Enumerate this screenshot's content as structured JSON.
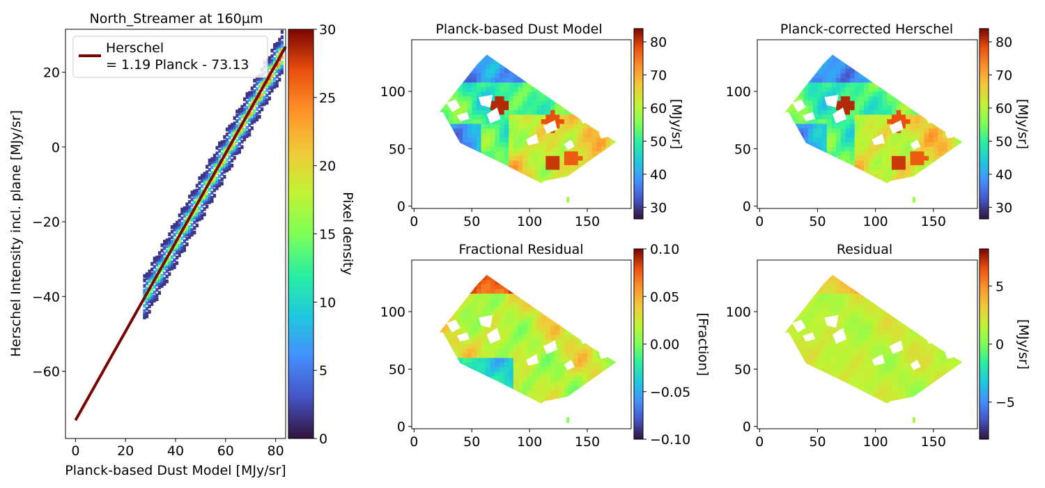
{
  "chart_data": [
    {
      "id": "scatter",
      "type": "heatmap",
      "title": "North_Streamer at 160µm",
      "xlabel": "Planck-based Dust Model [MJy/sr]",
      "ylabel": "Herschel Intensity incl. plane [MJy/sr]",
      "xlim": [
        -4,
        84
      ],
      "ylim": [
        -78,
        31.5
      ],
      "xticks": [
        0,
        20,
        40,
        60,
        80
      ],
      "yticks": [
        -60,
        -40,
        -20,
        0,
        20
      ],
      "fit": {
        "slope": 1.19,
        "intercept": -73.13,
        "x_start": 0,
        "x_end": 84,
        "color": "#7a0403"
      },
      "density_band": {
        "x_start": 27,
        "x_end": 84,
        "half_width": 3.2
      },
      "legend": {
        "label_line1": "Herschel",
        "label_line2": "= 1.19 Planck - 73.13",
        "placement": "upper-left"
      },
      "colorbar": {
        "label": "Pixel density",
        "min": 0,
        "max": 30,
        "ticks": [
          0,
          5,
          10,
          15,
          20,
          25,
          30
        ],
        "cmap": "turbo"
      }
    },
    {
      "id": "dust-model",
      "type": "heatmap",
      "title": "Planck-based Dust Model",
      "xlim": [
        -2,
        188
      ],
      "ylim": [
        -2,
        145
      ],
      "xticks": [
        0,
        50,
        100,
        150
      ],
      "yticks": [
        0,
        50,
        100
      ],
      "colorbar": {
        "label": "[MJy/sr]",
        "min": 26.5,
        "max": 84,
        "ticks": [
          30,
          40,
          50,
          60,
          70,
          80
        ],
        "cmap": "turbo"
      }
    },
    {
      "id": "herschel-corrected",
      "type": "heatmap",
      "title": "Planck-corrected Herschel",
      "xlim": [
        -2,
        188
      ],
      "ylim": [
        -2,
        145
      ],
      "xticks": [
        0,
        50,
        100,
        150
      ],
      "yticks": [
        0,
        50,
        100
      ],
      "colorbar": {
        "label": "[MJy/sr]",
        "min": 26.5,
        "max": 84,
        "ticks": [
          30,
          40,
          50,
          60,
          70,
          80
        ],
        "cmap": "turbo"
      }
    },
    {
      "id": "fractional-residual",
      "type": "heatmap",
      "title": "Fractional Residual",
      "xlim": [
        -2,
        188
      ],
      "ylim": [
        -2,
        145
      ],
      "xticks": [
        0,
        50,
        100,
        150
      ],
      "yticks": [
        0,
        50,
        100
      ],
      "colorbar": {
        "label": "[Fraction]",
        "min": -0.1,
        "max": 0.1,
        "ticks": [
          -0.1,
          -0.05,
          0.0,
          0.05,
          0.1
        ],
        "tick_labels": [
          "−0.10",
          "−0.05",
          "0.00",
          "0.05",
          "0.10"
        ],
        "cmap": "turbo"
      }
    },
    {
      "id": "residual",
      "type": "heatmap",
      "title": "Residual",
      "xlim": [
        -2,
        188
      ],
      "ylim": [
        -2,
        145
      ],
      "xticks": [
        0,
        50,
        100,
        150
      ],
      "yticks": [
        0,
        50,
        100
      ],
      "colorbar": {
        "label": "[MJy/sr]",
        "min": -8.2,
        "max": 8.2,
        "ticks": [
          -5,
          0,
          5
        ],
        "tick_labels": [
          "−5",
          "0",
          "5"
        ],
        "cmap": "turbo"
      }
    }
  ],
  "map_region": {
    "outline": [
      [
        22,
        82
      ],
      [
        55,
        124
      ],
      [
        63,
        132
      ],
      [
        155,
        68
      ],
      [
        175,
        56
      ],
      [
        133,
        26
      ],
      [
        113,
        22
      ],
      [
        110,
        20
      ],
      [
        75,
        38
      ],
      [
        40,
        55
      ],
      [
        25,
        82
      ]
    ],
    "holes": [
      [
        [
          28,
          90
        ],
        [
          36,
          93
        ],
        [
          40,
          86
        ],
        [
          33,
          82
        ]
      ],
      [
        [
          37,
          79
        ],
        [
          46,
          82
        ],
        [
          48,
          76
        ],
        [
          40,
          74
        ]
      ],
      [
        [
          56,
          95
        ],
        [
          68,
          97
        ],
        [
          66,
          86
        ],
        [
          58,
          88
        ]
      ],
      [
        [
          63,
          80
        ],
        [
          72,
          86
        ],
        [
          75,
          76
        ],
        [
          66,
          72
        ]
      ],
      [
        [
          112,
          70
        ],
        [
          122,
          75
        ],
        [
          124,
          67
        ],
        [
          115,
          63
        ]
      ],
      [
        [
          97,
          58
        ],
        [
          106,
          63
        ],
        [
          108,
          55
        ],
        [
          99,
          53
        ]
      ],
      [
        [
          143,
          78
        ],
        [
          150,
          82
        ],
        [
          153,
          74
        ],
        [
          146,
          72
        ]
      ],
      [
        [
          130,
          54
        ],
        [
          136,
          58
        ],
        [
          139,
          52
        ],
        [
          133,
          49
        ]
      ],
      [
        [
          160,
          64
        ],
        [
          166,
          66
        ],
        [
          167,
          60
        ],
        [
          162,
          59
        ]
      ]
    ]
  }
}
